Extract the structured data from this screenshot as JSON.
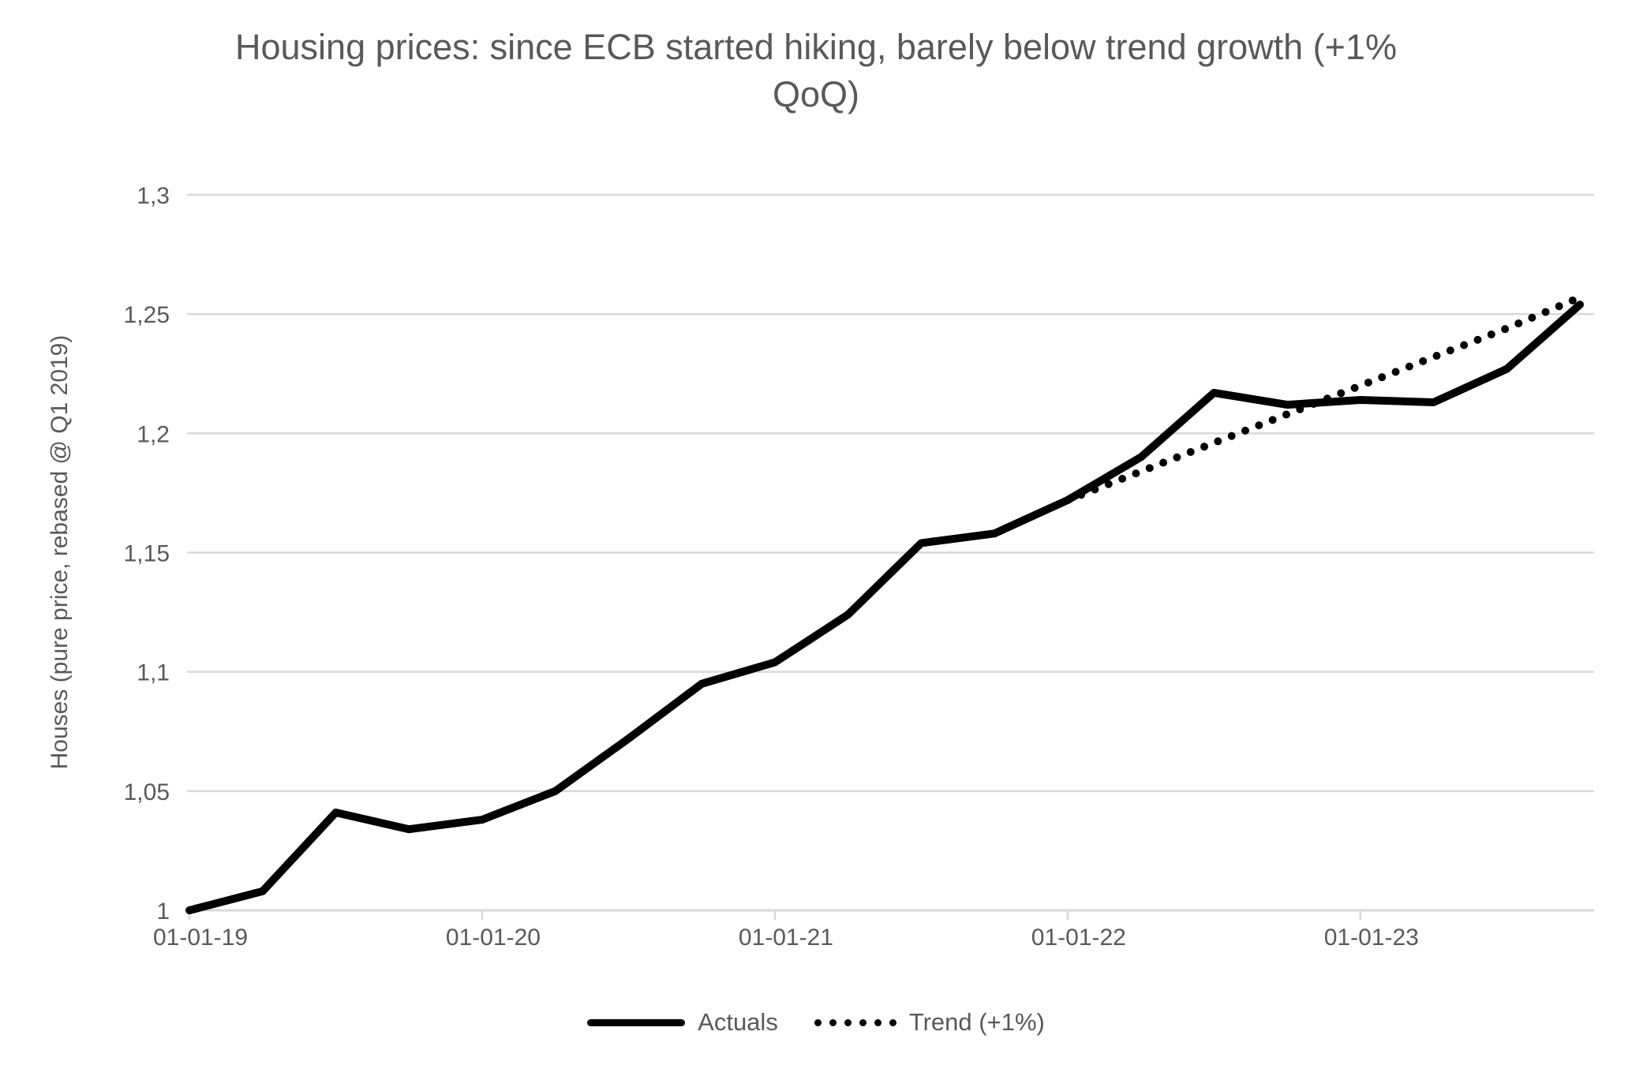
{
  "chart_title": "Housing prices: since ECB started hiking, barely below trend growth (+1% QoQ)",
  "legend": {
    "actuals_label": "Actuals",
    "trend_label": "Trend (+1%)"
  },
  "colors": {
    "series": "#000000",
    "text": "#595959",
    "gridline": "#d9d9d9",
    "axis": "#d9d9d9",
    "background": "#ffffff"
  },
  "chart_data": {
    "type": "line",
    "title": "Housing prices: since ECB started hiking, barely below trend growth (+1% QoQ)",
    "xlabel": "",
    "ylabel": "Houses (pure price, rebased @ Q1 2019)",
    "ylim": [
      1.0,
      1.3
    ],
    "grid": true,
    "legend_position": "bottom",
    "decimal_separator": ",",
    "categories": [
      "2019-Q1",
      "2019-Q2",
      "2019-Q3",
      "2019-Q4",
      "2020-Q1",
      "2020-Q2",
      "2020-Q3",
      "2020-Q4",
      "2021-Q1",
      "2021-Q2",
      "2021-Q3",
      "2021-Q4",
      "2022-Q1",
      "2022-Q2",
      "2022-Q3",
      "2022-Q4",
      "2023-Q1",
      "2023-Q2",
      "2023-Q3",
      "2023-Q4"
    ],
    "y_ticks": [
      {
        "label": "1",
        "value": 1.0
      },
      {
        "label": "1,05",
        "value": 1.05
      },
      {
        "label": "1,1",
        "value": 1.1
      },
      {
        "label": "1,15",
        "value": 1.15
      },
      {
        "label": "1,2",
        "value": 1.2
      },
      {
        "label": "1,25",
        "value": 1.25
      },
      {
        "label": "1,3",
        "value": 1.3
      }
    ],
    "x_ticks": [
      {
        "label": "01-01-19",
        "index": 0
      },
      {
        "label": "01-01-20",
        "index": 4
      },
      {
        "label": "01-01-21",
        "index": 8
      },
      {
        "label": "01-01-22",
        "index": 12
      },
      {
        "label": "01-01-23",
        "index": 16
      }
    ],
    "series": [
      {
        "name": "Actuals",
        "style": "solid",
        "color": "#000000",
        "start_index": 0,
        "values": [
          1.0,
          1.008,
          1.041,
          1.034,
          1.038,
          1.05,
          1.072,
          1.095,
          1.104,
          1.124,
          1.154,
          1.158,
          1.172,
          1.19,
          1.217,
          1.212,
          1.214,
          1.213,
          1.227,
          1.254
        ]
      },
      {
        "name": "Trend (+1%)",
        "style": "dotted",
        "color": "#000000",
        "start_index": 12,
        "growth_per_quarter_pct": 1,
        "values": [
          1.172,
          1.184,
          1.196,
          1.208,
          1.22,
          1.232,
          1.244,
          1.257
        ]
      }
    ]
  }
}
